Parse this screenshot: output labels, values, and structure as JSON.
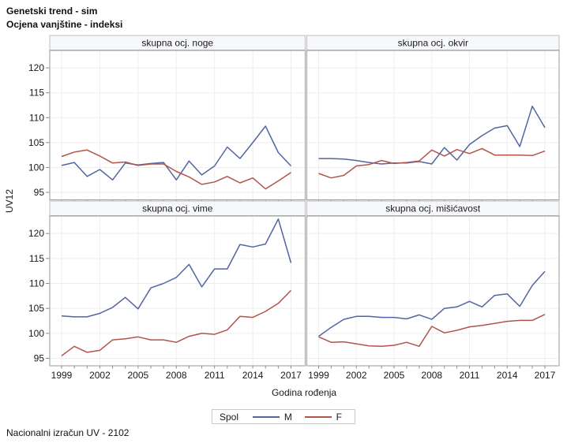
{
  "header": {
    "title_line1": "Genetski trend - sim",
    "title_line2": "Ocjena vanjštine - indeksi"
  },
  "footer": {
    "note": "Nacionalni izračun UV - 2102"
  },
  "legend": {
    "title": "Spol",
    "items": [
      {
        "label": "M",
        "color": "#5265a2"
      },
      {
        "label": "F",
        "color": "#b2544a"
      }
    ]
  },
  "axes": {
    "x_label": "Godina rođenja",
    "y_label": "UV12",
    "x_ticks": [
      1999,
      2002,
      2005,
      2008,
      2011,
      2014,
      2017
    ],
    "y_ticks": [
      120,
      115,
      110,
      105,
      100,
      95
    ]
  },
  "chart_data": {
    "type": "line",
    "title": "Genetski trend - sim / Ocjena vanjštine - indeksi",
    "xlabel": "Godina rođenja",
    "ylabel": "UV12",
    "x": [
      1999,
      2000,
      2001,
      2002,
      2003,
      2004,
      2005,
      2006,
      2007,
      2008,
      2009,
      2010,
      2011,
      2012,
      2013,
      2014,
      2015,
      2016,
      2017
    ],
    "ylim": [
      93.5,
      123.5
    ],
    "grid": true,
    "legend_position": "bottom",
    "panels": [
      {
        "key": "noge",
        "title": "skupna ocj. noge",
        "series": [
          {
            "name": "M",
            "values": [
              100.4,
              101.0,
              98.2,
              99.6,
              97.5,
              100.9,
              100.5,
              100.8,
              101.0,
              97.5,
              101.3,
              98.5,
              100.3,
              104.1,
              101.8,
              105.0,
              108.3,
              103.0,
              100.3
            ]
          },
          {
            "name": "F",
            "values": [
              102.2,
              103.1,
              103.5,
              102.3,
              100.9,
              101.1,
              100.4,
              100.7,
              100.7,
              99.2,
              98.1,
              96.6,
              97.1,
              98.2,
              96.9,
              97.9,
              95.7,
              97.3,
              99.0
            ]
          }
        ]
      },
      {
        "key": "okvir",
        "title": "skupna ocj. okvir",
        "series": [
          {
            "name": "M",
            "values": [
              101.8,
              101.8,
              101.7,
              101.4,
              101.0,
              100.7,
              100.9,
              100.9,
              101.2,
              100.7,
              104.0,
              101.5,
              104.6,
              106.4,
              107.9,
              108.4,
              104.2,
              112.3,
              108.0
            ]
          },
          {
            "name": "F",
            "values": [
              98.8,
              97.9,
              98.4,
              100.3,
              100.6,
              101.4,
              100.8,
              101.0,
              101.3,
              103.5,
              102.3,
              103.6,
              102.8,
              103.8,
              102.5,
              102.5,
              102.5,
              102.4,
              103.3
            ]
          }
        ]
      },
      {
        "key": "vime",
        "title": "skupna ocj. vime",
        "series": [
          {
            "name": "M",
            "values": [
              103.5,
              103.3,
              103.3,
              104.0,
              105.2,
              107.2,
              104.9,
              109.1,
              110.0,
              111.2,
              113.8,
              109.3,
              112.9,
              112.9,
              117.8,
              117.3,
              117.9,
              122.9,
              114.1
            ]
          },
          {
            "name": "F",
            "values": [
              95.5,
              97.4,
              96.2,
              96.6,
              98.7,
              98.9,
              99.3,
              98.7,
              98.7,
              98.2,
              99.4,
              100.0,
              99.8,
              100.7,
              103.4,
              103.2,
              104.4,
              106.0,
              108.6
            ]
          }
        ]
      },
      {
        "key": "misicavost",
        "title": "skupna ocj. mišićavost",
        "series": [
          {
            "name": "M",
            "values": [
              99.4,
              101.2,
              102.8,
              103.4,
              103.4,
              103.2,
              103.2,
              102.9,
              103.7,
              102.8,
              105.0,
              105.3,
              106.4,
              105.3,
              107.6,
              107.9,
              105.4,
              109.6,
              112.4
            ]
          },
          {
            "name": "F",
            "values": [
              99.3,
              98.2,
              98.3,
              97.9,
              97.5,
              97.4,
              97.6,
              98.2,
              97.4,
              101.4,
              100.1,
              100.6,
              101.3,
              101.6,
              102.0,
              102.4,
              102.6,
              102.6,
              103.8
            ]
          }
        ]
      }
    ],
    "style": {
      "grid_color": "#ededed",
      "panel_border": "#9a9a9a",
      "header_fill": "#f7f8fb",
      "header_border": "#bcbcbc",
      "tick_color": "#8a8a8a",
      "text_color": "#1a1a1a"
    }
  }
}
